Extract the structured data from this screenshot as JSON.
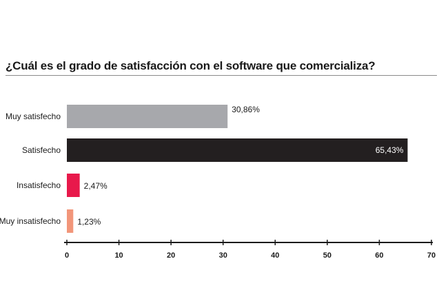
{
  "chart_data": {
    "type": "bar",
    "orientation": "horizontal",
    "title": "¿Cuál es el grado de satisfacción con el software que comercializa?",
    "categories": [
      "Muy satisfecho",
      "Satisfecho",
      "Insatisfecho",
      "Muy insatisfecho"
    ],
    "values": [
      30.86,
      65.43,
      2.47,
      1.23
    ],
    "value_labels": [
      "30,86%",
      "65,43%",
      "2,47%",
      "1,23%"
    ],
    "colors": [
      "#a7a8ac",
      "#231f20",
      "#e8194b",
      "#f2967a"
    ],
    "xlim": [
      0,
      70
    ],
    "xticks": [
      0,
      10,
      20,
      30,
      40,
      50,
      60,
      70
    ],
    "xlabel": "",
    "ylabel": "",
    "grid": false
  }
}
